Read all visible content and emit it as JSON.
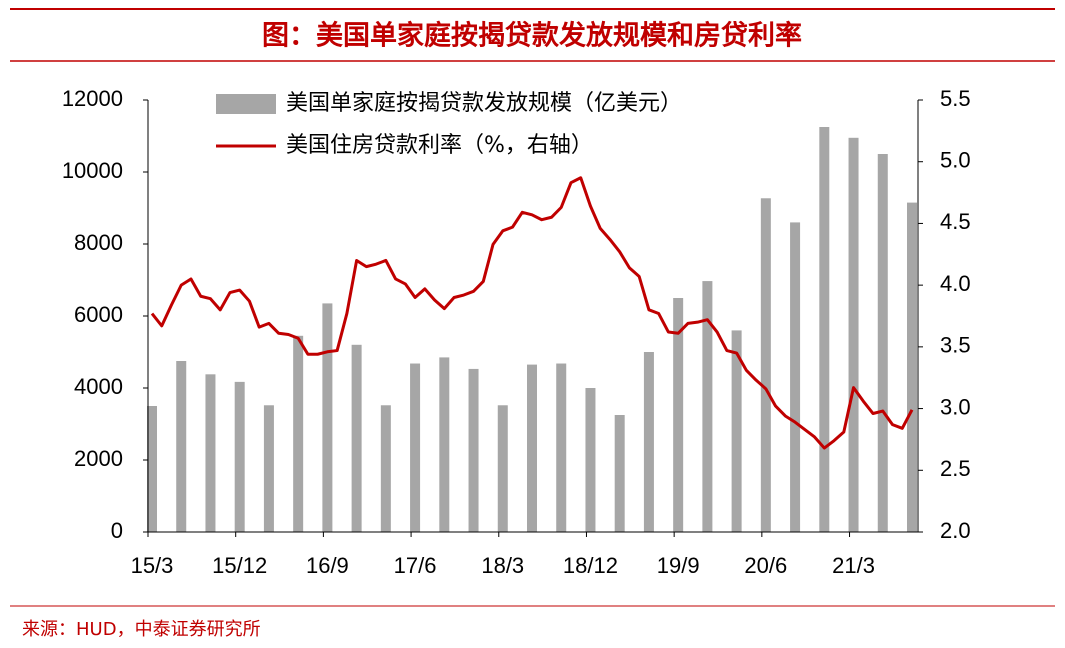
{
  "chart_data": {
    "type": "bar",
    "title": "图：美国单家庭按揭贷款发放规模和房贷利率",
    "source": "来源：HUD，中泰证券研究所",
    "categories": [
      "15/3",
      null,
      null,
      null,
      null,
      null,
      null,
      null,
      null,
      "15/12",
      null,
      null,
      null,
      null,
      null,
      null,
      null,
      null,
      "16/9",
      null,
      null,
      null,
      null,
      null,
      null,
      null,
      null,
      "17/6",
      null,
      null,
      null,
      null,
      null,
      null,
      null,
      null,
      "18/3",
      null,
      null,
      null,
      null,
      null,
      null,
      null,
      null,
      "18/12",
      null,
      null,
      null,
      null,
      null,
      null,
      null,
      null,
      "19/9",
      null,
      null,
      null,
      null,
      null,
      null,
      null,
      null,
      "20/6",
      null,
      null,
      null,
      null,
      null,
      null,
      null,
      null,
      "21/3",
      null,
      null,
      null,
      null,
      null,
      null
    ],
    "series": [
      {
        "name": "美国单家庭按揭贷款发放规模（亿美元）",
        "type": "bar",
        "color": "#a6a6a6",
        "values": [
          3500,
          null,
          null,
          4750,
          null,
          null,
          4380,
          null,
          null,
          4170,
          null,
          null,
          3520,
          null,
          null,
          5450,
          null,
          null,
          6350,
          null,
          null,
          5200,
          null,
          null,
          3520,
          null,
          null,
          4680,
          null,
          null,
          4850,
          null,
          null,
          4530,
          null,
          null,
          3520,
          null,
          null,
          4650,
          null,
          null,
          4680,
          null,
          null,
          4000,
          null,
          null,
          3250,
          null,
          null,
          5000,
          null,
          null,
          6500,
          null,
          null,
          6970,
          null,
          null,
          5600,
          null,
          null,
          9270,
          null,
          null,
          8600,
          null,
          null,
          11250,
          null,
          null,
          10950,
          null,
          null,
          10500,
          null,
          null,
          9150
        ]
      },
      {
        "name": "美国住房贷款利率（%，右轴）",
        "type": "line",
        "color": "#c00000",
        "axis": "y2",
        "values": [
          3.77,
          3.67,
          3.84,
          4.0,
          4.05,
          3.91,
          3.89,
          3.8,
          3.94,
          3.96,
          3.87,
          3.66,
          3.69,
          3.61,
          3.6,
          3.57,
          3.44,
          3.44,
          3.46,
          3.47,
          3.77,
          4.2,
          4.15,
          4.17,
          4.2,
          4.05,
          4.01,
          3.9,
          3.97,
          3.88,
          3.81,
          3.9,
          3.92,
          3.95,
          4.03,
          4.33,
          4.44,
          4.47,
          4.59,
          4.57,
          4.53,
          4.55,
          4.63,
          4.83,
          4.87,
          4.64,
          4.46,
          4.37,
          4.27,
          4.14,
          4.07,
          3.8,
          3.77,
          3.62,
          3.61,
          3.69,
          3.7,
          3.72,
          3.62,
          3.47,
          3.45,
          3.31,
          3.23,
          3.16,
          3.02,
          2.94,
          2.89,
          2.83,
          2.77,
          2.68,
          2.74,
          2.81,
          3.17,
          3.06,
          2.96,
          2.98,
          2.87,
          2.84,
          2.99
        ]
      }
    ],
    "ylim": [
      0,
      12000
    ],
    "yticks": [
      0,
      2000,
      4000,
      6000,
      8000,
      10000,
      12000
    ],
    "y2lim": [
      2,
      5.5
    ],
    "y2ticks": [
      {
        "value": 2,
        "label": "2.0"
      },
      2.5,
      {
        "value": 3,
        "label": "3.0"
      },
      3.5,
      {
        "value": 4,
        "label": "4.0"
      },
      4.5,
      {
        "value": 5,
        "label": "5.0"
      },
      5.5
    ],
    "legend": "top"
  }
}
